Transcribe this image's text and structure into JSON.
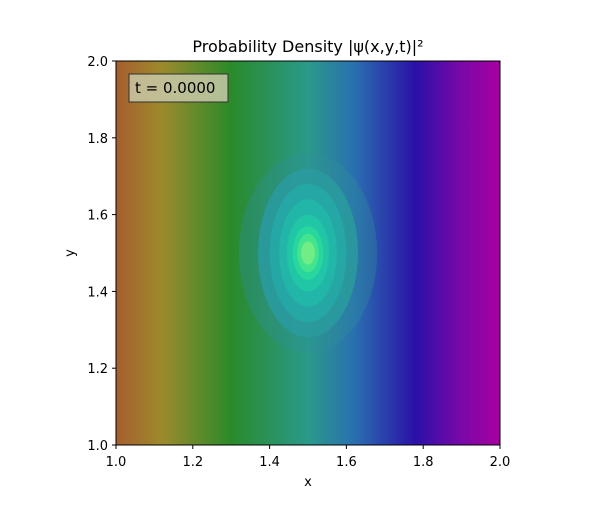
{
  "chart_data": {
    "type": "heatmap",
    "title": "Probability Density |ψ(x,y,t)|²",
    "xlabel": "x",
    "ylabel": "y",
    "xlim": [
      1.0,
      2.0
    ],
    "ylim": [
      1.0,
      2.0
    ],
    "xticks": [
      "1.0",
      "1.2",
      "1.4",
      "1.6",
      "1.8",
      "2.0"
    ],
    "yticks": [
      "1.0",
      "1.2",
      "1.4",
      "1.6",
      "1.8",
      "2.0"
    ],
    "annotation": "t = 0.0000",
    "grid": false,
    "colorbar": false,
    "background_gradient_stops": [
      {
        "x": 1.0,
        "color": "#a65e2e"
      },
      {
        "x": 1.12,
        "color": "#9c8a2c"
      },
      {
        "x": 1.3,
        "color": "#2a8a2a"
      },
      {
        "x": 1.5,
        "color": "#2a9a8a"
      },
      {
        "x": 1.62,
        "color": "#2a70b0"
      },
      {
        "x": 1.78,
        "color": "#2a10a8"
      },
      {
        "x": 1.9,
        "color": "#7a08a8"
      },
      {
        "x": 2.0,
        "color": "#a800a0"
      }
    ],
    "peak": {
      "x": 1.5,
      "y": 1.5
    },
    "contour_levels": [
      {
        "rx": 0.18,
        "ry": 0.26,
        "color": "#2f8f9a"
      },
      {
        "rx": 0.13,
        "ry": 0.22,
        "color": "#2a9a9f"
      },
      {
        "rx": 0.1,
        "ry": 0.18,
        "color": "#25a8a6"
      },
      {
        "rx": 0.075,
        "ry": 0.14,
        "color": "#22b8a8"
      },
      {
        "rx": 0.055,
        "ry": 0.1,
        "color": "#20c8a5"
      },
      {
        "rx": 0.04,
        "ry": 0.07,
        "color": "#28d89c"
      },
      {
        "rx": 0.028,
        "ry": 0.05,
        "color": "#48e58e"
      },
      {
        "rx": 0.018,
        "ry": 0.03,
        "color": "#78ec84"
      }
    ]
  }
}
